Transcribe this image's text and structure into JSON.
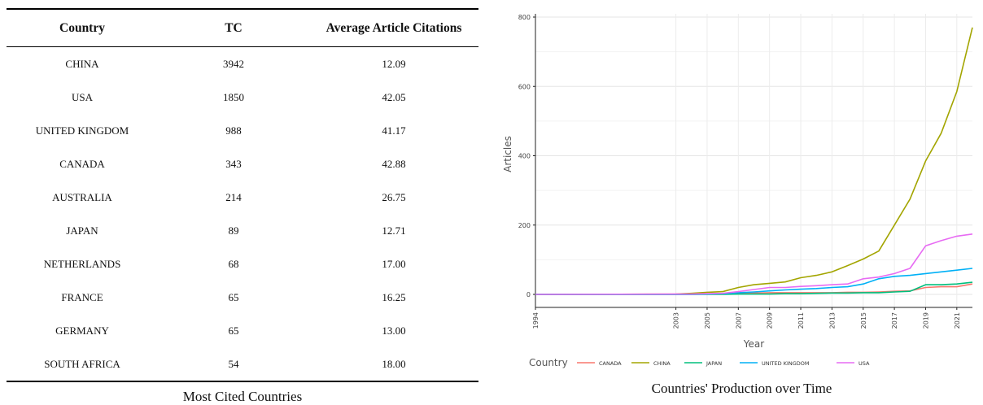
{
  "table": {
    "headers": [
      "Country",
      "TC",
      "Average Article Citations"
    ],
    "rows": [
      [
        "CHINA",
        "3942",
        "12.09"
      ],
      [
        "USA",
        "1850",
        "42.05"
      ],
      [
        "UNITED KINGDOM",
        "988",
        "41.17"
      ],
      [
        "CANADA",
        "343",
        "42.88"
      ],
      [
        "AUSTRALIA",
        "214",
        "26.75"
      ],
      [
        "JAPAN",
        "89",
        "12.71"
      ],
      [
        "NETHERLANDS",
        "68",
        "17.00"
      ],
      [
        "FRANCE",
        "65",
        "16.25"
      ],
      [
        "GERMANY",
        "65",
        "13.00"
      ],
      [
        "SOUTH AFRICA",
        "54",
        "18.00"
      ]
    ],
    "caption": "Most Cited Countries"
  },
  "chart_caption": "Countries' Production over Time",
  "chart_data": {
    "type": "line",
    "title": "",
    "xlabel": "Year",
    "ylabel": "Articles",
    "xlim": [
      1994,
      2022
    ],
    "ylim": [
      0,
      800
    ],
    "x_ticks": [
      1994,
      2003,
      2005,
      2007,
      2009,
      2011,
      2013,
      2015,
      2017,
      2019,
      2021
    ],
    "y_ticks": [
      0,
      200,
      400,
      600,
      800
    ],
    "grid": true,
    "legend_title": "Country",
    "legend_position": "bottom",
    "x": [
      1994,
      2003,
      2004,
      2005,
      2006,
      2007,
      2008,
      2009,
      2010,
      2011,
      2012,
      2013,
      2014,
      2015,
      2016,
      2017,
      2018,
      2019,
      2020,
      2021,
      2022
    ],
    "series": [
      {
        "name": "CANADA",
        "color": "#F8766D",
        "values": [
          0,
          0,
          0,
          1,
          2,
          3,
          4,
          5,
          5,
          5,
          5,
          5,
          6,
          6,
          7,
          9,
          10,
          20,
          22,
          22,
          30
        ]
      },
      {
        "name": "CHINA",
        "color": "#A3A500",
        "values": [
          0,
          1,
          3,
          6,
          8,
          20,
          28,
          32,
          36,
          48,
          55,
          65,
          83,
          102,
          125,
          200,
          275,
          385,
          465,
          585,
          770
        ]
      },
      {
        "name": "JAPAN",
        "color": "#00BF7D",
        "values": [
          0,
          0,
          0,
          0,
          0,
          1,
          1,
          1,
          2,
          2,
          3,
          4,
          4,
          5,
          5,
          7,
          9,
          28,
          28,
          30,
          35
        ]
      },
      {
        "name": "UNITED KINGDOM",
        "color": "#00B0F6",
        "values": [
          0,
          0,
          0,
          1,
          2,
          5,
          7,
          10,
          13,
          15,
          17,
          20,
          22,
          30,
          45,
          52,
          55,
          60,
          65,
          70,
          75
        ]
      },
      {
        "name": "USA",
        "color": "#E76BF3",
        "values": [
          0,
          1,
          1,
          2,
          3,
          8,
          14,
          20,
          20,
          23,
          25,
          28,
          30,
          45,
          50,
          60,
          75,
          140,
          155,
          168,
          174
        ]
      }
    ]
  }
}
